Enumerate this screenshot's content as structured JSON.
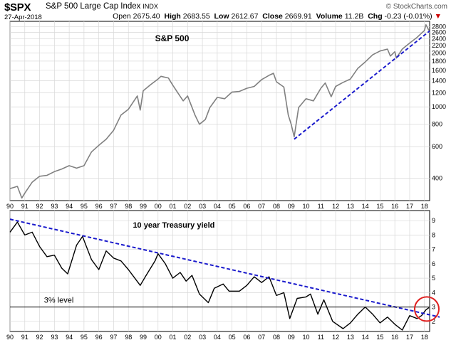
{
  "header": {
    "symbol": "$SPX",
    "name": "S&P 500 Large Cap Index",
    "exchange": "INDX",
    "date": "27-Apr-2018",
    "brand": "© StockCharts.com",
    "stats": {
      "open_label": "Open",
      "open": "2675.40",
      "high_label": "High",
      "high": "2683.55",
      "low_label": "Low",
      "low": "2612.67",
      "close_label": "Close",
      "close": "2669.91",
      "volume_label": "Volume",
      "volume": "11.2B",
      "chg_label": "Chg",
      "chg": "-0.23 (-0.01%)"
    }
  },
  "colors": {
    "price_line": "#808080",
    "yield_line": "#000000",
    "trend_line": "#1a1acc",
    "highlight": "#e02020",
    "grid": "#d8d8d8"
  },
  "chart_data": [
    {
      "type": "line",
      "annotation": "S&P 500",
      "yscale": "log",
      "ylim": [
        300,
        3000
      ],
      "xlim": [
        1990,
        2018.35
      ],
      "y_ticks": [
        400,
        600,
        800,
        1000,
        1200,
        1400,
        1600,
        1800,
        2000,
        2200,
        2400,
        2600,
        2800
      ],
      "x": [
        1990.0,
        1990.5,
        1990.8,
        1991.0,
        1991.5,
        1992.0,
        1992.5,
        1993.0,
        1993.5,
        1994.0,
        1994.5,
        1995.0,
        1995.5,
        1996.0,
        1996.5,
        1997.0,
        1997.5,
        1998.0,
        1998.6,
        1998.8,
        1999.0,
        1999.5,
        2000.0,
        2000.2,
        2000.7,
        2001.0,
        2001.7,
        2002.0,
        2002.5,
        2002.8,
        2003.2,
        2003.5,
        2004.0,
        2004.5,
        2005.0,
        2005.5,
        2006.0,
        2006.5,
        2007.0,
        2007.5,
        2007.8,
        2008.0,
        2008.5,
        2008.8,
        2009.0,
        2009.2,
        2009.5,
        2010.0,
        2010.5,
        2011.0,
        2011.3,
        2011.7,
        2012.0,
        2012.5,
        2013.0,
        2013.5,
        2014.0,
        2014.5,
        2015.0,
        2015.5,
        2015.7,
        2016.0,
        2016.1,
        2016.5,
        2017.0,
        2017.5,
        2018.0,
        2018.1,
        2018.3
      ],
      "values": [
        350,
        360,
        310,
        330,
        380,
        410,
        415,
        435,
        450,
        470,
        455,
        470,
        560,
        610,
        660,
        740,
        900,
        970,
        1150,
        960,
        1230,
        1330,
        1430,
        1480,
        1450,
        1320,
        1080,
        1150,
        900,
        800,
        850,
        990,
        1130,
        1110,
        1210,
        1220,
        1270,
        1300,
        1420,
        1500,
        1540,
        1380,
        1290,
        900,
        800,
        680,
        990,
        1110,
        1080,
        1270,
        1360,
        1140,
        1300,
        1370,
        1430,
        1640,
        1780,
        1950,
        2050,
        2100,
        1920,
        2030,
        1870,
        2100,
        2270,
        2440,
        2670,
        2870,
        2670
      ],
      "trend_line": {
        "x": [
          2009.2,
          2018.35
        ],
        "y": [
          660,
          2650
        ]
      }
    },
    {
      "type": "line",
      "annotation": "10 year Treasury yield",
      "ylim": [
        1.3,
        9.7
      ],
      "xlim": [
        1990,
        2018.35
      ],
      "y_ticks": [
        2,
        3,
        4,
        5,
        6,
        7,
        8,
        9
      ],
      "x_ticks": [
        "90",
        "91",
        "92",
        "93",
        "94",
        "95",
        "96",
        "97",
        "98",
        "99",
        "00",
        "01",
        "02",
        "03",
        "04",
        "05",
        "06",
        "07",
        "08",
        "09",
        "10",
        "11",
        "12",
        "13",
        "14",
        "15",
        "16",
        "17",
        "18"
      ],
      "x": [
        1990.0,
        1990.5,
        1991.0,
        1991.5,
        1992.0,
        1992.5,
        1993.0,
        1993.5,
        1993.9,
        1994.5,
        1994.9,
        1995.5,
        1996.0,
        1996.5,
        1997.0,
        1997.5,
        1998.0,
        1998.8,
        1999.2,
        1999.8,
        2000.0,
        2000.5,
        2001.0,
        2001.5,
        2001.9,
        2002.3,
        2002.8,
        2003.4,
        2003.8,
        2004.4,
        2004.8,
        2005.5,
        2006.0,
        2006.5,
        2007.0,
        2007.5,
        2008.0,
        2008.5,
        2008.9,
        2009.4,
        2010.0,
        2010.3,
        2010.8,
        2011.2,
        2011.8,
        2012.5,
        2013.0,
        2013.5,
        2014.0,
        2014.5,
        2015.0,
        2015.5,
        2016.0,
        2016.5,
        2017.0,
        2017.5,
        2017.8,
        2018.1,
        2018.3
      ],
      "values": [
        8.2,
        8.9,
        8.0,
        8.2,
        7.2,
        6.5,
        6.6,
        5.7,
        5.3,
        7.3,
        7.9,
        6.3,
        5.6,
        6.9,
        6.4,
        6.2,
        5.6,
        4.5,
        5.2,
        6.2,
        6.7,
        6.0,
        5.0,
        5.4,
        4.8,
        5.2,
        3.9,
        3.3,
        4.3,
        4.6,
        4.1,
        4.1,
        4.5,
        5.1,
        4.7,
        5.1,
        3.8,
        4.0,
        2.2,
        3.6,
        3.7,
        3.9,
        2.5,
        3.5,
        2.0,
        1.5,
        1.9,
        2.5,
        3.0,
        2.5,
        1.9,
        2.3,
        1.8,
        1.4,
        2.4,
        2.2,
        2.4,
        2.8,
        2.96
      ],
      "trend_line": {
        "x": [
          1990.0,
          2018.35
        ],
        "y": [
          9.1,
          2.4
        ]
      },
      "reference_line": {
        "y": 3.0,
        "label": "3% level"
      },
      "highlight": "circle"
    }
  ]
}
